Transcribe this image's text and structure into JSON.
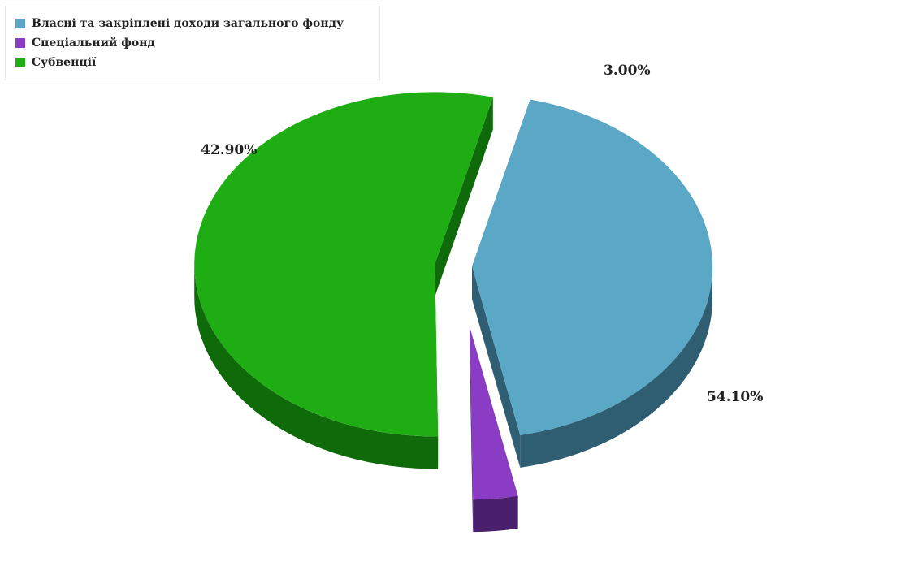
{
  "chart_data": {
    "type": "pie",
    "style": "3d-exploded",
    "legend_position": "top-left",
    "categories": [
      "Власні та закріплені доходи загального фонду",
      "Спеціальний фонд",
      "Субвенції"
    ],
    "values": [
      42.9,
      3.0,
      54.1
    ],
    "labels": [
      "42.90%",
      "3.00%",
      "54.10%"
    ],
    "colors": [
      "#5aa8c6",
      "#8a3cc4",
      "#1fad14"
    ],
    "side_colors": [
      "#2f5e72",
      "#4a1f6d",
      "#0f6a0a"
    ]
  }
}
